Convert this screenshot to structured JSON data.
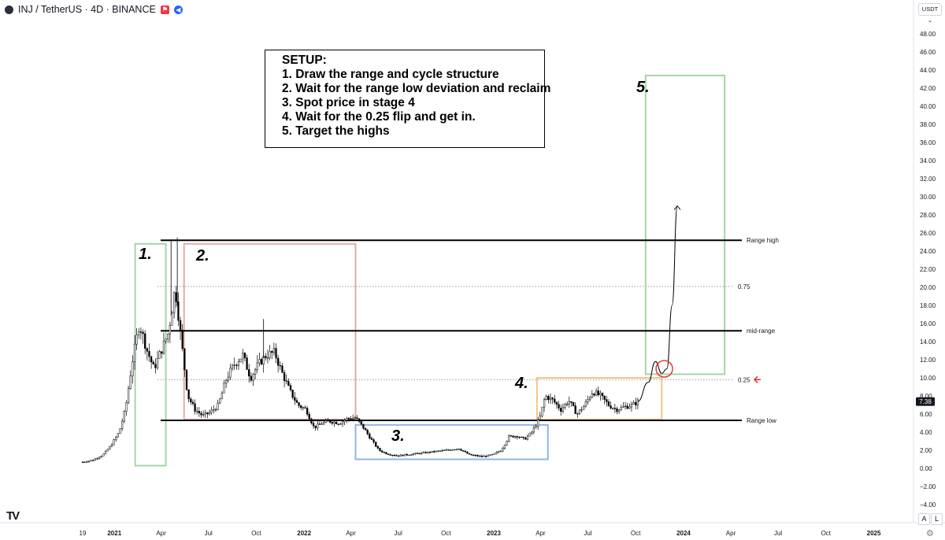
{
  "header": {
    "title": "INJ / TetherUS · 4D · BINANCE",
    "currency": "USDT ⌄"
  },
  "setup": {
    "title": "SETUP:",
    "steps": [
      "1. Draw the range and cycle structure",
      "2. Wait for the range low deviation and reclaim",
      "3. Spot price in stage 4",
      "4. Wait for the 0.25 flip and get in.",
      "5. Target the highs"
    ]
  },
  "stages": [
    "1.",
    "2.",
    "3.",
    "4.",
    "5."
  ],
  "axis_buttons": {
    "auto": "A",
    "log": "L"
  },
  "colors": {
    "candle": "#000000",
    "stage1_box": "#a5d6a7",
    "stage2_box": "#e6a9a9",
    "stage3_box": "#90b4e8",
    "stage4_box": "#f6c389",
    "stage5_box": "#a5d6a7",
    "marker": "#e53935",
    "price_label_bg": "#131722"
  },
  "chart_data": {
    "type": "candlestick",
    "symbol": "INJ / TetherUS",
    "interval": "4D",
    "exchange": "BINANCE",
    "x_ticks": [
      "19",
      "2021",
      "Apr",
      "Jul",
      "Oct",
      "2022",
      "Apr",
      "Jul",
      "Oct",
      "2023",
      "Apr",
      "Jul",
      "Oct",
      "2024",
      "Apr",
      "Jul",
      "Oct",
      "2025"
    ],
    "y_ticks": [
      "48.00",
      "46.00",
      "44.00",
      "42.00",
      "40.00",
      "38.00",
      "36.00",
      "34.00",
      "32.00",
      "30.00",
      "28.00",
      "26.00",
      "24.00",
      "22.00",
      "20.00",
      "18.00",
      "16.00",
      "14.00",
      "12.00",
      "10.00",
      "8.00",
      "6.00",
      "4.00",
      "2.00",
      "0.00",
      "−2.00",
      "−4.00"
    ],
    "ylim": [
      -4,
      48
    ],
    "xlim": [
      "2020-11-01",
      "2025-02-01"
    ],
    "current_price": "7.38",
    "levels": [
      {
        "label": "Range high",
        "value": 25.2,
        "style": "solid"
      },
      {
        "label": "0.75",
        "value": 20.1,
        "style": "dotted"
      },
      {
        "label": "mid-range",
        "value": 15.2,
        "style": "solid"
      },
      {
        "label": "0.25",
        "value": 9.8,
        "style": "dotted"
      },
      {
        "label": "Range low",
        "value": 5.3,
        "style": "solid"
      }
    ],
    "price_path": [
      [
        "2020-11-01",
        0.7
      ],
      [
        "2020-11-20",
        0.9
      ],
      [
        "2020-12-10",
        1.5
      ],
      [
        "2020-12-25",
        2.5
      ],
      [
        "2021-01-10",
        4.0
      ],
      [
        "2021-01-22",
        6.5
      ],
      [
        "2021-02-05",
        12.0
      ],
      [
        "2021-02-18",
        16.0
      ],
      [
        "2021-03-05",
        13.0
      ],
      [
        "2021-03-18",
        11.0
      ],
      [
        "2021-04-01",
        13.0
      ],
      [
        "2021-04-15",
        15.0
      ],
      [
        "2021-04-28",
        20.0
      ],
      [
        "2021-05-10",
        14.0
      ],
      [
        "2021-05-22",
        8.0
      ],
      [
        "2021-06-05",
        6.5
      ],
      [
        "2021-06-20",
        5.8
      ],
      [
        "2021-07-05",
        6.2
      ],
      [
        "2021-07-20",
        7.0
      ],
      [
        "2021-08-05",
        10.0
      ],
      [
        "2021-08-20",
        11.5
      ],
      [
        "2021-09-05",
        12.5
      ],
      [
        "2021-09-20",
        10.0
      ],
      [
        "2021-10-05",
        11.5
      ],
      [
        "2021-10-20",
        12.5
      ],
      [
        "2021-11-05",
        12.8
      ],
      [
        "2021-11-20",
        10.5
      ],
      [
        "2021-12-05",
        8.5
      ],
      [
        "2021-12-20",
        7.0
      ],
      [
        "2022-01-05",
        6.5
      ],
      [
        "2022-01-20",
        4.5
      ],
      [
        "2022-02-05",
        5.0
      ],
      [
        "2022-02-20",
        5.2
      ],
      [
        "2022-03-10",
        5.0
      ],
      [
        "2022-03-25",
        5.5
      ],
      [
        "2022-04-10",
        5.6
      ],
      [
        "2022-04-25",
        4.5
      ],
      [
        "2022-05-10",
        3.2
      ],
      [
        "2022-05-25",
        2.0
      ],
      [
        "2022-06-10",
        1.6
      ],
      [
        "2022-07-01",
        1.4
      ],
      [
        "2022-08-01",
        1.6
      ],
      [
        "2022-09-01",
        1.8
      ],
      [
        "2022-10-01",
        2.0
      ],
      [
        "2022-10-25",
        2.2
      ],
      [
        "2022-11-15",
        1.5
      ],
      [
        "2022-12-10",
        1.3
      ],
      [
        "2022-12-30",
        1.5
      ],
      [
        "2023-01-15",
        2.0
      ],
      [
        "2023-01-30",
        3.5
      ],
      [
        "2023-02-15",
        3.6
      ],
      [
        "2023-03-01",
        3.2
      ],
      [
        "2023-03-15",
        4.0
      ],
      [
        "2023-03-30",
        5.5
      ],
      [
        "2023-04-10",
        8.0
      ],
      [
        "2023-04-25",
        7.5
      ],
      [
        "2023-05-10",
        6.5
      ],
      [
        "2023-05-25",
        7.5
      ],
      [
        "2023-06-10",
        6.0
      ],
      [
        "2023-06-25",
        7.0
      ],
      [
        "2023-07-10",
        8.5
      ],
      [
        "2023-07-25",
        8.0
      ],
      [
        "2023-08-10",
        7.0
      ],
      [
        "2023-08-25",
        6.5
      ],
      [
        "2023-09-10",
        6.8
      ],
      [
        "2023-09-25",
        7.0
      ],
      [
        "2023-10-05",
        7.38
      ]
    ],
    "projection": [
      [
        "2023-10-05",
        7.4
      ],
      [
        "2023-10-25",
        9.5
      ],
      [
        "2023-11-08",
        11.8
      ],
      [
        "2023-11-20",
        10.5
      ],
      [
        "2023-11-30",
        11.0
      ],
      [
        "2023-12-10",
        18.0
      ],
      [
        "2023-12-20",
        29.0
      ]
    ],
    "zones": [
      {
        "label": "1.",
        "x_start": "2021-02-10",
        "x_end": "2021-04-10",
        "y_low": 0.3,
        "y_high": 24.8
      },
      {
        "label": "2.",
        "x_start": "2021-05-15",
        "x_end": "2022-04-10",
        "y_low": 5.4,
        "y_high": 24.8
      },
      {
        "label": "3.",
        "x_start": "2022-04-10",
        "x_end": "2023-04-15",
        "y_low": 1.0,
        "y_high": 4.8
      },
      {
        "label": "4.",
        "x_start": "2023-03-25",
        "x_end": "2023-11-20",
        "y_low": 5.4,
        "y_high": 10.0
      },
      {
        "label": "5.",
        "x_start": "2023-10-20",
        "x_end": "2024-03-20",
        "y_low": 10.4,
        "y_high": 43.4
      }
    ],
    "marker": {
      "type": "circle",
      "x": "2023-11-25",
      "y": 11.0
    },
    "arrow_at_level": "0.25"
  }
}
